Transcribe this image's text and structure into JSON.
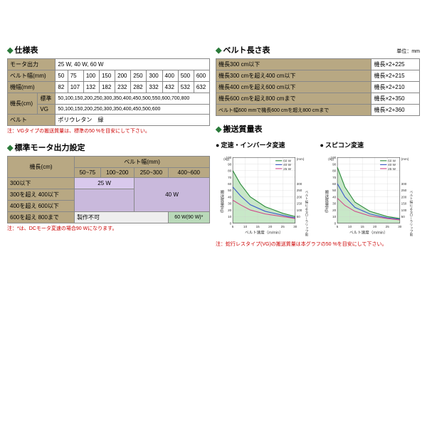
{
  "spec": {
    "title": "仕様表",
    "rows": [
      {
        "label": "モータ出力",
        "value": "25 W, 40 W, 60 W"
      },
      {
        "label": "ベルト幅(mm)",
        "cells": [
          "50",
          "75",
          "100",
          "150",
          "200",
          "250",
          "300",
          "400",
          "500",
          "600"
        ]
      },
      {
        "label": "機幅(mm)",
        "cells": [
          "82",
          "107",
          "132",
          "182",
          "232",
          "282",
          "332",
          "432",
          "532",
          "632"
        ]
      },
      {
        "label": "機長(cm)",
        "sub1": "標準",
        "sub1_val": "50,100,150,200,250,300,350,400,450,500,550,600,700,800",
        "sub2": "VG",
        "sub2_val": "50,100,150,200,250,300,350,400,450,500,600"
      },
      {
        "label": "ベルト",
        "value": "ポリウレタン　緑"
      }
    ],
    "note": "注：VGタイプの搬送質量は、標準の50 %を目安にして下さい。"
  },
  "motor": {
    "title": "標準モータ出力設定",
    "row_header": "機長(cm)",
    "col_header": "ベルト幅(mm)",
    "cols": [
      "50~75",
      "100~200",
      "250~300",
      "400~600"
    ],
    "rows": [
      "300以下",
      "300を超え 400以下",
      "400を超え 600以下",
      "600を超え 800まで"
    ],
    "w25": "25 W",
    "w40": "40 W",
    "w60": "60 W(90 W)*",
    "na": "製作不可",
    "note": "注：*は、DCモータ変速の場合90 Wになります。"
  },
  "belt_length": {
    "title": "ベルト長さ表",
    "unit": "単位：mm",
    "rows": [
      {
        "cond": "機長300 cm以下",
        "formula": "機長×2+225"
      },
      {
        "cond": "機長300 cmを超え400 cm以下",
        "formula": "機長×2+215"
      },
      {
        "cond": "機長400 cmを超え600 cm以下",
        "formula": "機長×2+210"
      },
      {
        "cond": "機長600 cmを超え800 cmまで",
        "formula": "機長×2+350"
      },
      {
        "cond": "ベルト幅600 mmで機長600 cmを超え800 cmまで",
        "formula": "機長×2+360"
      }
    ]
  },
  "charts": {
    "section_title": "搬送質量表",
    "chart1_title": "定速・インバータ変速",
    "chart2_title": "スピコン変速",
    "y_label": "搬送質量(kg)",
    "y2_label": "ベルト幅によるローラリップ限界(mm)",
    "x_label": "ベルト速度（m/min）",
    "legend": [
      "60 W",
      "40 W",
      "25 W"
    ],
    "legend_colors": [
      "#2a8a3a",
      "#3a5aca",
      "#d04a8a"
    ],
    "y_ticks": [
      0,
      10,
      20,
      30,
      40,
      50,
      60,
      70,
      80,
      90,
      100
    ],
    "x_ticks": [
      5,
      10,
      15,
      20,
      25,
      30
    ],
    "y2_ticks": [
      50,
      100,
      150,
      200,
      250,
      300
    ],
    "chart1_series": {
      "60W": [
        [
          5,
          80
        ],
        [
          8,
          60
        ],
        [
          12,
          40
        ],
        [
          18,
          25
        ],
        [
          25,
          15
        ],
        [
          30,
          10
        ]
      ],
      "40W": [
        [
          5,
          55
        ],
        [
          8,
          42
        ],
        [
          12,
          28
        ],
        [
          18,
          18
        ],
        [
          25,
          12
        ],
        [
          30,
          8
        ]
      ],
      "25W": [
        [
          5,
          35
        ],
        [
          8,
          28
        ],
        [
          12,
          20
        ],
        [
          18,
          14
        ],
        [
          25,
          10
        ],
        [
          30,
          7
        ]
      ]
    },
    "chart2_series": {
      "60W": [
        [
          5,
          85
        ],
        [
          8,
          55
        ],
        [
          12,
          32
        ],
        [
          18,
          18
        ],
        [
          25,
          10
        ],
        [
          30,
          7
        ]
      ],
      "40W": [
        [
          5,
          60
        ],
        [
          8,
          40
        ],
        [
          12,
          24
        ],
        [
          18,
          14
        ],
        [
          25,
          8
        ],
        [
          30,
          6
        ]
      ],
      "25W": [
        [
          5,
          38
        ],
        [
          8,
          27
        ],
        [
          12,
          18
        ],
        [
          18,
          11
        ],
        [
          25,
          7
        ],
        [
          30,
          5
        ]
      ]
    },
    "fill_color": "#c8e8c8",
    "grid_color": "#ccc",
    "note": "注：蛇行レスタイプ(VG)の搬送質量は本グラフの50 %を目安にして下さい。"
  }
}
